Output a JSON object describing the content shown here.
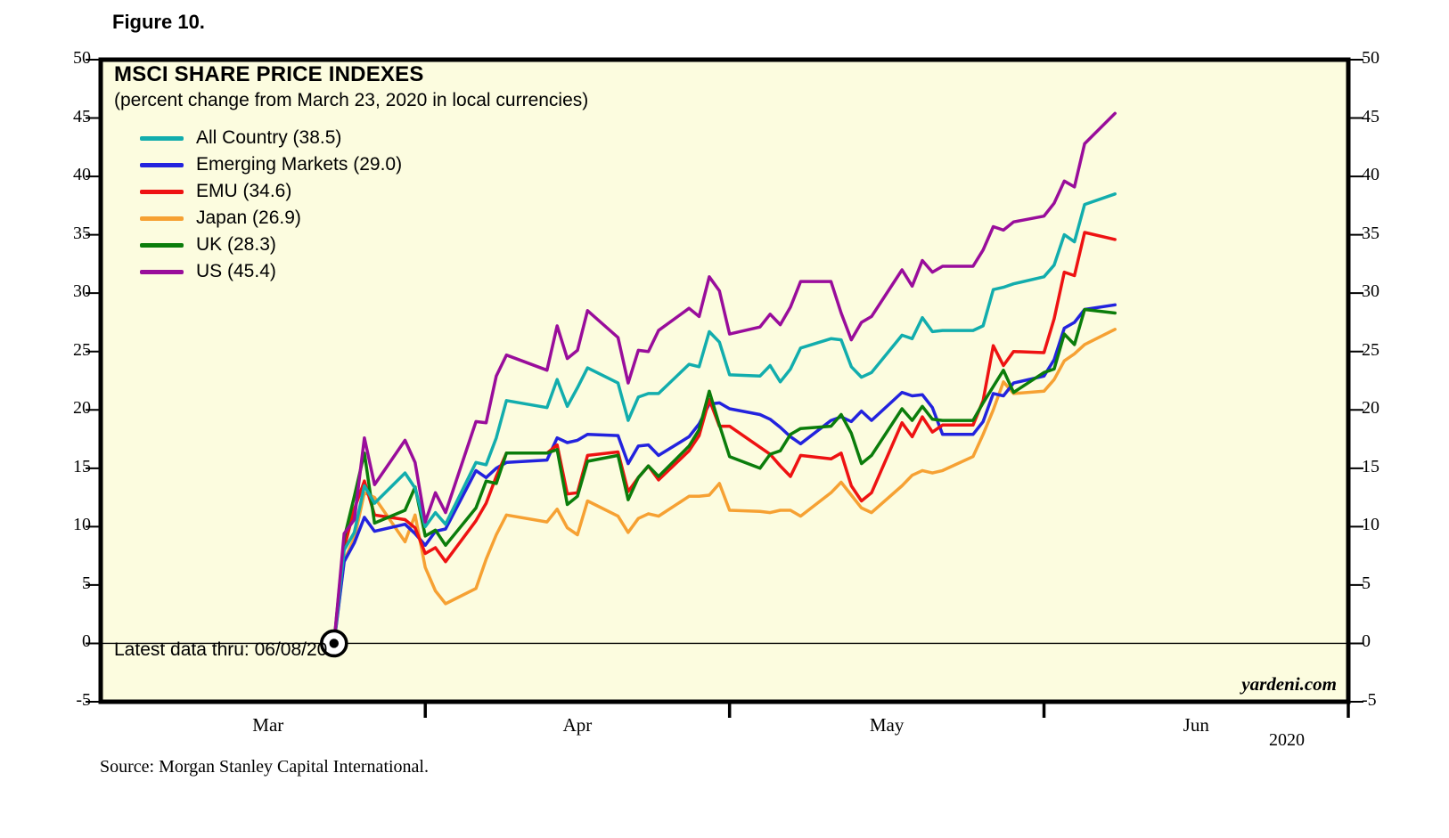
{
  "figure_label": "Figure 10.",
  "chart": {
    "title": "MSCI SHARE PRICE INDEXES",
    "subtitle": "(percent change from March 23, 2020 in local currencies)",
    "latest_note": "Latest data thru: 06/08/20",
    "watermark": "yardeni.com"
  },
  "source": "Source: Morgan Stanley Capital International.",
  "axes": {
    "y_ticks": [
      -5,
      0,
      5,
      10,
      15,
      20,
      25,
      30,
      35,
      40,
      45,
      50
    ],
    "y_range": [
      -5,
      50
    ],
    "x_month_labels": [
      "Mar",
      "Apr",
      "May",
      "Jun"
    ],
    "year_label": "2020",
    "zero_baseline": true
  },
  "colors": {
    "plot_bg": "#FCFCDF",
    "frame": "#000000",
    "zero_line": "#000000"
  },
  "chart_data": {
    "type": "line",
    "title": "MSCI SHARE PRICE INDEXES",
    "subtitle": "(percent change from March 23, 2020 in local currencies)",
    "xlabel": "2020 (Mar - Jun)",
    "ylabel": "percent change from March 23, 2020",
    "ylim": [
      -5,
      50
    ],
    "x_domain": [
      "02-28",
      "07-01"
    ],
    "anchor_point": {
      "date": "03-23",
      "value": 0
    },
    "legend_position": "top-left",
    "grid": false,
    "dates": [
      "03-23",
      "03-24",
      "03-25",
      "03-26",
      "03-27",
      "03-30",
      "03-31",
      "04-01",
      "04-02",
      "04-03",
      "04-06",
      "04-07",
      "04-08",
      "04-09",
      "04-13",
      "04-14",
      "04-15",
      "04-16",
      "04-17",
      "04-20",
      "04-21",
      "04-22",
      "04-23",
      "04-24",
      "04-27",
      "04-28",
      "04-29",
      "04-30",
      "05-01",
      "05-04",
      "05-05",
      "05-06",
      "05-07",
      "05-08",
      "05-11",
      "05-12",
      "05-13",
      "05-14",
      "05-15",
      "05-18",
      "05-19",
      "05-20",
      "05-21",
      "05-22",
      "05-25",
      "05-26",
      "05-27",
      "05-28",
      "05-29",
      "06-01",
      "06-02",
      "06-03",
      "06-04",
      "06-05",
      "06-08"
    ],
    "series": [
      {
        "name": "All Country",
        "label": "All Country (38.5)",
        "final_value": 38.5,
        "color": "#12ADAD",
        "values": [
          0,
          8.0,
          9.5,
          13.5,
          12.0,
          14.6,
          13.3,
          10.0,
          11.2,
          10.2,
          15.5,
          15.3,
          17.6,
          20.8,
          20.2,
          22.6,
          20.3,
          21.9,
          23.6,
          22.3,
          19.1,
          21.1,
          21.4,
          21.4,
          23.9,
          23.7,
          26.7,
          25.8,
          23.0,
          22.9,
          23.8,
          22.4,
          23.5,
          25.3,
          26.1,
          26.0,
          23.7,
          22.8,
          23.2,
          26.4,
          26.1,
          27.9,
          26.7,
          26.8,
          26.8,
          27.2,
          30.3,
          30.5,
          30.8,
          31.4,
          32.4,
          35.0,
          34.4,
          37.6,
          38.5
        ]
      },
      {
        "name": "Emerging Markets",
        "label": "Emerging Markets (29.0)",
        "final_value": 29.0,
        "color": "#2323DE",
        "values": [
          0,
          7.0,
          8.6,
          10.8,
          9.6,
          10.2,
          9.4,
          8.4,
          9.6,
          9.8,
          14.8,
          14.2,
          15.0,
          15.5,
          15.7,
          17.6,
          17.2,
          17.4,
          17.9,
          17.8,
          15.4,
          16.9,
          17.0,
          16.1,
          17.7,
          18.8,
          20.5,
          20.6,
          20.1,
          19.6,
          19.2,
          18.5,
          17.7,
          17.1,
          19.1,
          19.4,
          19.0,
          19.9,
          19.1,
          21.5,
          21.2,
          21.3,
          20.2,
          17.9,
          17.9,
          19.0,
          21.4,
          21.2,
          22.3,
          22.9,
          24.3,
          27.0,
          27.5,
          28.6,
          29.0
        ]
      },
      {
        "name": "EMU",
        "label": "EMU (34.6)",
        "final_value": 34.6,
        "color": "#EE1212",
        "values": [
          0,
          8.2,
          11.5,
          13.9,
          11.0,
          10.6,
          9.9,
          7.7,
          8.2,
          7.0,
          10.5,
          12.0,
          14.3,
          16.3,
          16.3,
          17.0,
          12.8,
          12.9,
          16.1,
          16.4,
          13.0,
          14.2,
          15.2,
          14.0,
          16.5,
          17.8,
          20.9,
          18.6,
          18.6,
          16.8,
          16.2,
          15.2,
          14.3,
          16.1,
          15.8,
          16.3,
          13.5,
          12.2,
          12.9,
          18.9,
          17.7,
          19.4,
          18.1,
          18.7,
          18.7,
          20.8,
          25.5,
          23.8,
          25.0,
          24.9,
          27.8,
          31.8,
          31.5,
          35.2,
          34.6
        ]
      },
      {
        "name": "Japan",
        "label": "Japan (26.9)",
        "final_value": 26.9,
        "color": "#F6A133",
        "values": [
          0,
          7.1,
          9.0,
          12.9,
          12.5,
          8.7,
          11.0,
          6.5,
          4.5,
          3.4,
          4.7,
          7.2,
          9.3,
          11.0,
          10.4,
          11.5,
          9.9,
          9.3,
          12.2,
          10.9,
          9.5,
          10.7,
          11.1,
          10.9,
          12.6,
          12.6,
          12.7,
          13.7,
          11.4,
          11.3,
          11.2,
          11.4,
          11.4,
          10.9,
          12.9,
          13.8,
          12.7,
          11.6,
          11.2,
          13.5,
          14.4,
          14.8,
          14.6,
          14.8,
          16.0,
          17.9,
          20.0,
          22.4,
          21.4,
          21.6,
          22.6,
          24.2,
          24.8,
          25.6,
          26.9
        ]
      },
      {
        "name": "UK",
        "label": "UK (28.3)",
        "final_value": 28.3,
        "color": "#0B7D0B",
        "values": [
          0,
          9.0,
          12.6,
          16.3,
          10.3,
          11.4,
          13.4,
          9.2,
          9.7,
          8.4,
          11.6,
          13.9,
          13.7,
          16.3,
          16.3,
          16.6,
          11.9,
          12.6,
          15.6,
          16.1,
          12.3,
          14.2,
          15.2,
          14.3,
          16.9,
          18.3,
          21.6,
          18.7,
          16.0,
          15.0,
          16.2,
          16.5,
          17.9,
          18.4,
          18.6,
          19.6,
          18.0,
          15.4,
          16.1,
          20.1,
          19.1,
          20.3,
          19.2,
          19.1,
          19.1,
          20.6,
          22.0,
          23.4,
          21.5,
          23.2,
          23.5,
          26.5,
          25.6,
          28.6,
          28.3
        ]
      },
      {
        "name": "US",
        "label": "US (45.4)",
        "final_value": 45.4,
        "color": "#990D9B",
        "values": [
          0,
          9.4,
          10.6,
          17.6,
          13.6,
          17.4,
          15.5,
          10.4,
          12.9,
          11.2,
          19.0,
          18.9,
          22.9,
          24.7,
          23.4,
          27.2,
          24.4,
          25.1,
          28.5,
          26.2,
          22.3,
          25.1,
          25.0,
          26.8,
          28.7,
          28.0,
          31.4,
          30.2,
          26.5,
          27.1,
          28.2,
          27.3,
          28.8,
          31.0,
          31.0,
          28.3,
          26.0,
          27.5,
          28.0,
          32.0,
          30.6,
          32.8,
          31.8,
          32.3,
          32.3,
          33.7,
          35.7,
          35.4,
          36.1,
          36.6,
          37.7,
          39.6,
          39.1,
          42.8,
          45.4
        ]
      }
    ]
  }
}
